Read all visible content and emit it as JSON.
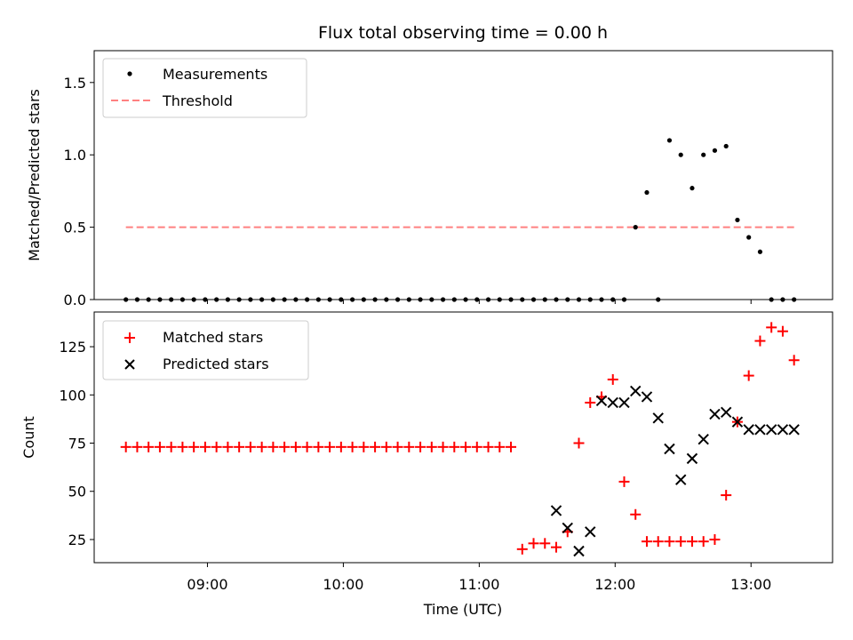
{
  "title": "Flux total observing time = 0.00 h",
  "colors": {
    "measurements": "#000000",
    "threshold": "#ff8080",
    "matched": "#ff0000",
    "predicted": "#000000"
  },
  "chart_data": [
    {
      "type": "scatter",
      "ylabel": "Matched/Predicted stars",
      "xlim": [
        "08:10",
        "13:36"
      ],
      "ylim": [
        0,
        1.72
      ],
      "yticks": [
        0.0,
        0.5,
        1.0,
        1.5
      ],
      "ytick_labels": [
        "0.0",
        "0.5",
        "1.0",
        "1.5"
      ],
      "xticks": [
        "09:00",
        "10:00",
        "11:00",
        "12:00",
        "13:00"
      ],
      "legend": {
        "placement": "top-left",
        "entries": [
          "Measurements",
          "Threshold"
        ]
      },
      "series": [
        {
          "name": "Measurements",
          "marker": "dot",
          "x": [
            "08:24",
            "08:29",
            "08:34",
            "08:39",
            "08:44",
            "08:49",
            "08:54",
            "08:59",
            "09:04",
            "09:09",
            "09:14",
            "09:19",
            "09:24",
            "09:29",
            "09:34",
            "09:39",
            "09:44",
            "09:49",
            "09:54",
            "09:59",
            "10:04",
            "10:09",
            "10:14",
            "10:19",
            "10:24",
            "10:29",
            "10:34",
            "10:39",
            "10:44",
            "10:49",
            "10:54",
            "10:59",
            "11:04",
            "11:09",
            "11:14",
            "11:19",
            "11:24",
            "11:29",
            "11:34",
            "11:39",
            "11:44",
            "11:49",
            "11:54",
            "11:59",
            "12:04",
            "12:09",
            "12:14",
            "12:19",
            "12:24",
            "12:29",
            "12:34",
            "12:39",
            "12:44",
            "12:49",
            "12:54",
            "12:59",
            "13:04",
            "13:09",
            "13:14",
            "13:19"
          ],
          "y": [
            0,
            0,
            0,
            0,
            0,
            0,
            0,
            0,
            0,
            0,
            0,
            0,
            0,
            0,
            0,
            0,
            0,
            0,
            0,
            0,
            0,
            0,
            0,
            0,
            0,
            0,
            0,
            0,
            0,
            0,
            0,
            0,
            0,
            0,
            0,
            0,
            0,
            0,
            0,
            0,
            0,
            0,
            0,
            0,
            0,
            0.5,
            0.74,
            0,
            1.1,
            1.0,
            0.77,
            1.0,
            1.03,
            1.06,
            0.55,
            0.43,
            0.33,
            0,
            0,
            0
          ]
        },
        {
          "name": "Threshold",
          "marker": "dashed-line",
          "x": [
            "08:24",
            "13:19"
          ],
          "y": [
            0.5,
            0.5
          ]
        }
      ]
    },
    {
      "type": "scatter",
      "ylabel": "Count",
      "xlabel": "Time (UTC)",
      "xlim": [
        "08:10",
        "13:36"
      ],
      "ylim": [
        13,
        143
      ],
      "yticks": [
        25,
        50,
        75,
        100,
        125
      ],
      "ytick_labels": [
        "25",
        "50",
        "75",
        "100",
        "125"
      ],
      "xticks": [
        "09:00",
        "10:00",
        "11:00",
        "12:00",
        "13:00"
      ],
      "legend": {
        "placement": "top-left",
        "entries": [
          "Matched stars",
          "Predicted stars"
        ]
      },
      "series": [
        {
          "name": "Matched stars",
          "marker": "plus",
          "x": [
            "08:24",
            "08:29",
            "08:34",
            "08:39",
            "08:44",
            "08:49",
            "08:54",
            "08:59",
            "09:04",
            "09:09",
            "09:14",
            "09:19",
            "09:24",
            "09:29",
            "09:34",
            "09:39",
            "09:44",
            "09:49",
            "09:54",
            "09:59",
            "10:04",
            "10:09",
            "10:14",
            "10:19",
            "10:24",
            "10:29",
            "10:34",
            "10:39",
            "10:44",
            "10:49",
            "10:54",
            "10:59",
            "11:04",
            "11:09",
            "11:14",
            "11:19",
            "11:24",
            "11:29",
            "11:34",
            "11:39",
            "11:44",
            "11:49",
            "11:54",
            "11:59",
            "12:04",
            "12:09",
            "12:14",
            "12:19",
            "12:24",
            "12:29",
            "12:34",
            "12:39",
            "12:44",
            "12:49",
            "12:54",
            "12:59",
            "13:04",
            "13:09",
            "13:14",
            "13:19"
          ],
          "y": [
            73,
            73,
            73,
            73,
            73,
            73,
            73,
            73,
            73,
            73,
            73,
            73,
            73,
            73,
            73,
            73,
            73,
            73,
            73,
            73,
            73,
            73,
            73,
            73,
            73,
            73,
            73,
            73,
            73,
            73,
            73,
            73,
            73,
            73,
            73,
            20,
            23,
            23,
            21,
            29,
            75,
            96,
            99,
            108,
            55,
            38,
            24,
            24,
            24,
            24,
            24,
            24,
            25,
            48,
            86,
            110,
            128,
            135,
            133,
            118
          ]
        },
        {
          "name": "Predicted stars",
          "marker": "x",
          "x": [
            "11:34",
            "11:39",
            "11:44",
            "11:49",
            "11:54",
            "11:59",
            "12:04",
            "12:09",
            "12:14",
            "12:19",
            "12:24",
            "12:29",
            "12:34",
            "12:39",
            "12:44",
            "12:49",
            "12:54",
            "12:59",
            "13:04",
            "13:09",
            "13:14",
            "13:19"
          ],
          "y": [
            40,
            31,
            19,
            29,
            97,
            96,
            96,
            102,
            99,
            88,
            72,
            56,
            67,
            77,
            90,
            91,
            86,
            82,
            82,
            82,
            82,
            82
          ]
        }
      ]
    }
  ]
}
